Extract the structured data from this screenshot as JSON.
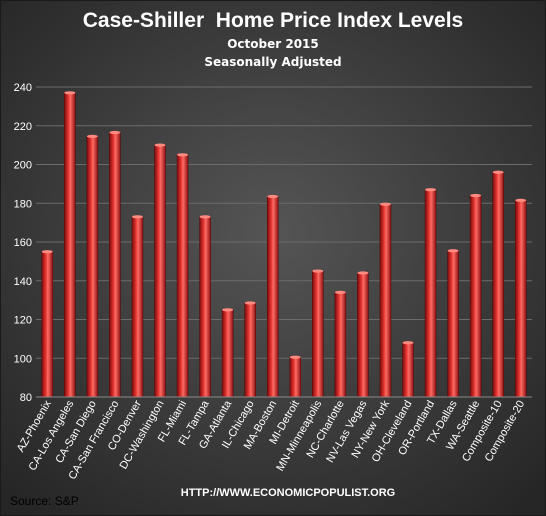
{
  "chart_data": {
    "type": "bar",
    "title": "Case-Shiller  Home Price Index Levels",
    "subtitle_line1": "October 2015",
    "subtitle_line2": "Seasonally Adjusted",
    "source": "Source: S&P",
    "url": "HTTP://WWW.ECONOMICPOPULIST.ORG",
    "ylim": [
      80,
      240
    ],
    "yticks": [
      80,
      100,
      120,
      140,
      160,
      180,
      200,
      220,
      240
    ],
    "grid": true,
    "categories": [
      "AZ-Phoenix",
      "CA-Los Angeles",
      "CA-San Diego",
      "CA-San Francisco",
      "CO-Denver",
      "DC-Washington",
      "FL-Miami",
      "FL-Tampa",
      "GA-Atlanta",
      "IL-Chicago",
      "MA-Boston",
      "MI-Detroit",
      "MN-Minneapolis",
      "NC-Charlotte",
      "NV-Las Vegas",
      "NY-New York",
      "OH-Cleveland",
      "OR-Portland",
      "TX-Dallas",
      "WA-Seattle",
      "Composite-10",
      "Composite-20"
    ],
    "values": [
      155.0,
      237.0,
      214.5,
      216.5,
      173.0,
      210.0,
      205.0,
      173.0,
      125.0,
      128.5,
      183.5,
      100.5,
      145.0,
      134.0,
      144.0,
      179.5,
      108.0,
      187.0,
      155.5,
      184.0,
      196.0,
      181.5
    ],
    "colors": {
      "bar": "#d9262a",
      "bar_dark": "#7a0c0e",
      "bar_light": "#ff6a62",
      "background": "#3a3a3a",
      "grid": "#6b6b6b",
      "text": "#ffffff"
    }
  }
}
